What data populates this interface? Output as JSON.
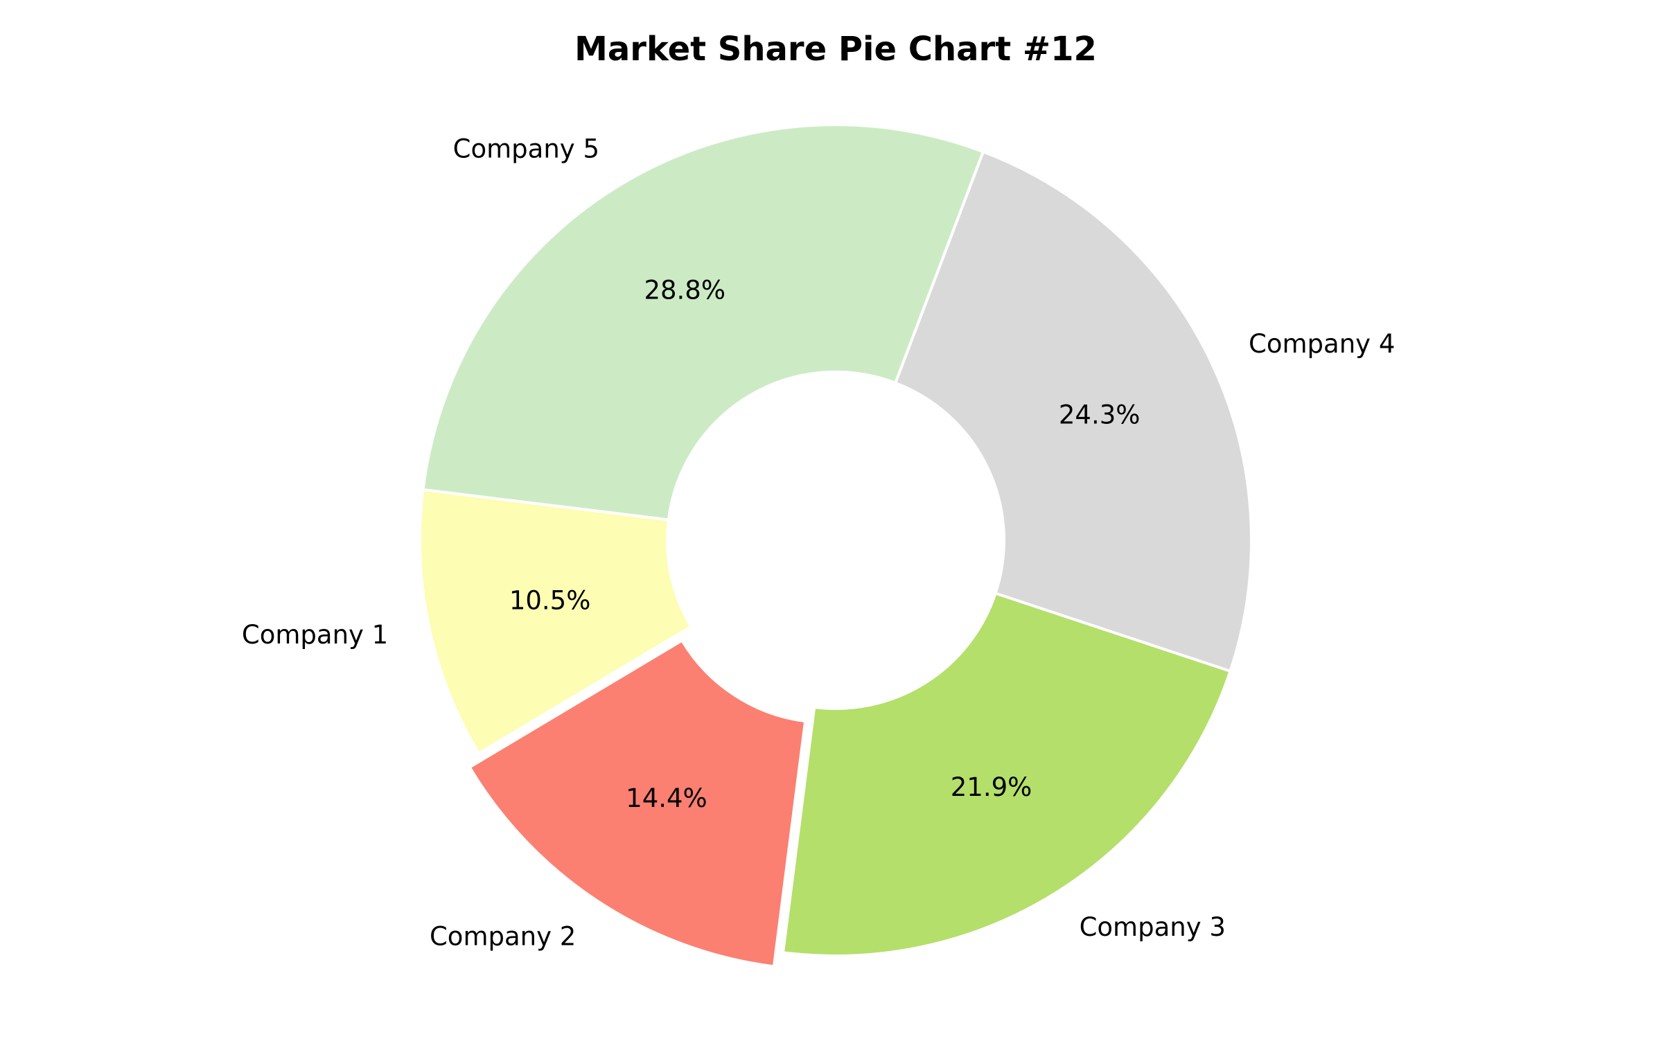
{
  "chart_data": {
    "type": "pie",
    "variant": "donut",
    "title": "Market Share Pie Chart #12",
    "categories": [
      "Company 1",
      "Company 2",
      "Company 3",
      "Company 4",
      "Company 5"
    ],
    "values": [
      10.5,
      14.4,
      21.9,
      24.3,
      28.8
    ],
    "value_labels": [
      "10.5%",
      "14.4%",
      "21.9%",
      "24.3%",
      "28.8%"
    ],
    "colors": [
      "#fdfdb3",
      "#fb8071",
      "#b4df6a",
      "#d9d9d9",
      "#ccebc5"
    ],
    "exploded": [
      "Company 2"
    ],
    "edge_color": "#ffffff",
    "legend": "none",
    "grid": false
  }
}
